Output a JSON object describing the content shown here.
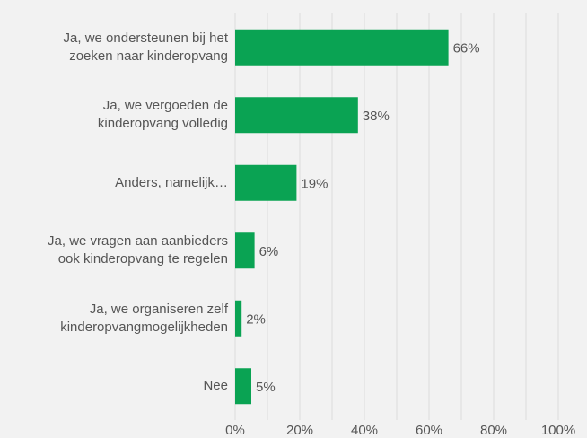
{
  "chart_data": {
    "type": "hbar",
    "categories": [
      "Ja, we ondersteunen bij het\nzoeken naar kinderopvang",
      "Ja, we vergoeden de\nkinderopvang volledig",
      "Anders, namelijk…",
      "Ja, we vragen aan aanbieders\nook kinderopvang te regelen",
      "Ja, we organiseren zelf\nkinderopvangmogelijkheden",
      "Nee"
    ],
    "values": [
      66,
      38,
      19,
      6,
      2,
      5
    ],
    "value_labels": [
      "66%",
      "38%",
      "19%",
      "6%",
      "2%",
      "5%"
    ],
    "color": "#0aa353",
    "xlim": [
      0,
      100
    ],
    "xticks": [
      {
        "value": 0,
        "label": "0%"
      },
      {
        "value": 20,
        "label": "20%"
      },
      {
        "value": 40,
        "label": "40%"
      },
      {
        "value": 60,
        "label": "60%"
      },
      {
        "value": 80,
        "label": "80%"
      },
      {
        "value": 100,
        "label": "100%"
      }
    ],
    "grid": true
  }
}
